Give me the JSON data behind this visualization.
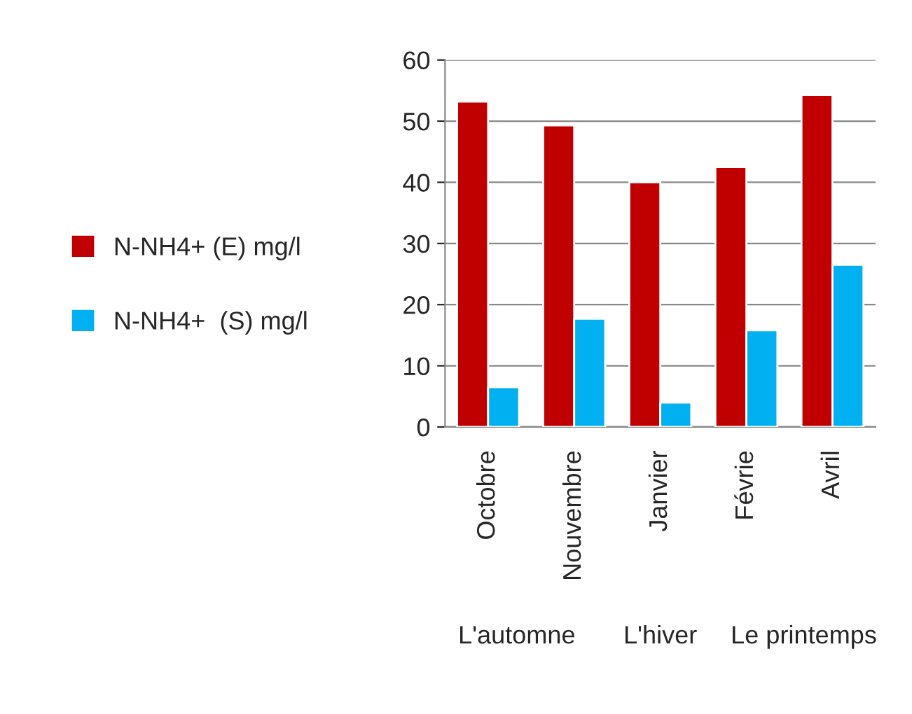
{
  "chart_data": {
    "type": "bar",
    "categories": [
      "Octobre",
      "Nouvembre",
      "Janvier",
      "Févrie",
      "Avril"
    ],
    "series": [
      {
        "name": "N-NH4+ (E) mg/l",
        "color": "#c00000",
        "values": [
          53.2,
          49.3,
          40,
          42.5,
          54.3
        ]
      },
      {
        "name": "N-NH4+  (S) mg/l",
        "color": "#00b0f0",
        "values": [
          6.5,
          17.7,
          4,
          15.8,
          26.5
        ]
      }
    ],
    "ylim": [
      0,
      60
    ],
    "yticks": [
      0,
      10,
      20,
      30,
      40,
      50,
      60
    ],
    "grid": "y",
    "legend": "left",
    "annotations": [
      "L'automne",
      "L'hiver",
      "Le printemps"
    ]
  }
}
